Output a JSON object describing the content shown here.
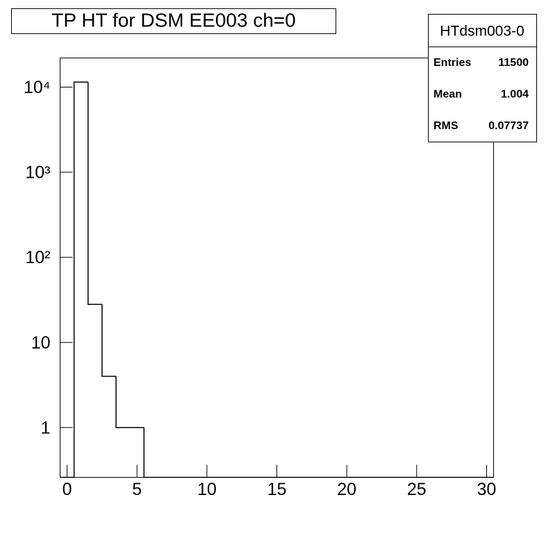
{
  "chart_data": {
    "type": "histogram",
    "title": "TP HT for DSM EE003 ch=0",
    "bins": [
      -0.5,
      0.5,
      1.5,
      2.5,
      3.5,
      4.5,
      5.5,
      6.5,
      7.5,
      8.5,
      9.5,
      10.5,
      11.5,
      12.5,
      13.5,
      14.5,
      15.5,
      16.5,
      17.5,
      18.5,
      19.5,
      20.5,
      21.5,
      22.5,
      23.5,
      24.5,
      25.5,
      26.5,
      27.5,
      28.5,
      29.5,
      30.5
    ],
    "values": [
      0,
      11466,
      28,
      4,
      1,
      1,
      0,
      0,
      0,
      0,
      0,
      0,
      0,
      0,
      0,
      0,
      0,
      0,
      0,
      0,
      0,
      0,
      0,
      0,
      0,
      0,
      0,
      0,
      0,
      0,
      0
    ],
    "color": "#000000",
    "xlim": [
      -0.5,
      30.5
    ],
    "xticks": [
      0,
      5,
      10,
      15,
      20,
      25,
      30
    ],
    "ylim": [
      0.26,
      22000
    ],
    "log_y": true,
    "yticks": [
      1,
      10,
      {
        "value": 100,
        "label": "10²"
      },
      {
        "value": 1000,
        "label": "10³"
      },
      {
        "value": 10000,
        "label": "10⁴"
      }
    ],
    "stats": {
      "title": "HTdsm003-0",
      "rows": [
        {
          "label": "Entries",
          "value": 11500
        },
        {
          "label": "Mean",
          "value": 1.004
        },
        {
          "label": "RMS",
          "value": 0.07737
        }
      ]
    }
  }
}
